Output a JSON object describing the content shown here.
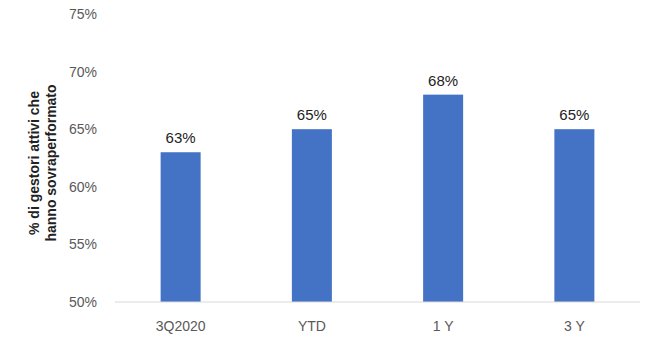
{
  "chart_data": {
    "type": "bar",
    "y_label": "% di gestori attivi che hanno sovraperformato",
    "categories": [
      "3Q2020",
      "YTD",
      "1 Y",
      "3 Y"
    ],
    "values": [
      63,
      65,
      68,
      65
    ],
    "value_labels": [
      "63%",
      "65%",
      "68%",
      "65%"
    ],
    "color": "#4472c4",
    "ylim": [
      50,
      75
    ],
    "yticks": [
      {
        "value": 50,
        "label": "50%"
      },
      {
        "value": 55,
        "label": "55%"
      },
      {
        "value": 60,
        "label": "60%"
      },
      {
        "value": 65,
        "label": "65%"
      },
      {
        "value": 70,
        "label": "70%"
      },
      {
        "value": 75,
        "label": "75%"
      }
    ],
    "grid": false,
    "data_labels": true
  }
}
